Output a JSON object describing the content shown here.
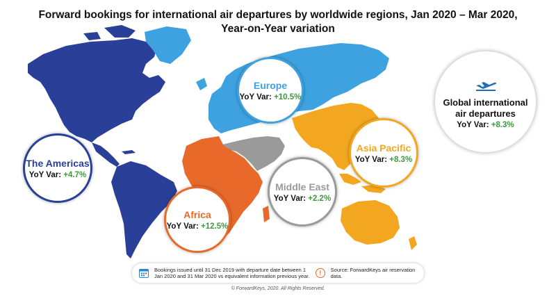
{
  "title_line1": "Forward bookings for international air departures by worldwide regions, Jan 2020 – Mar 2020,",
  "title_line2": "Year-on-Year variation",
  "regions": [
    {
      "name": "The Americas",
      "yoy_label": "YoY Var:",
      "yoy_value": "+4.7%",
      "color": "#2a3f98"
    },
    {
      "name": "Europe",
      "yoy_label": "YoY Var:",
      "yoy_value": "+10.5%",
      "color": "#3ea1e0"
    },
    {
      "name": "Africa",
      "yoy_label": "YoY Var:",
      "yoy_value": "+12.5%",
      "color": "#e8692a"
    },
    {
      "name": "Middle East",
      "yoy_label": "YoY Var:",
      "yoy_value": "+2.2%",
      "color": "#9a9a9a"
    },
    {
      "name": "Asia Pacific",
      "yoy_label": "YoY Var:",
      "yoy_value": "+8.3%",
      "color": "#f3a721"
    }
  ],
  "global": {
    "line1": "Global international",
    "line2": "air departures",
    "yoy_label": "YoY Var:",
    "yoy_value": "+8.3%",
    "icon": "plane-departure-icon"
  },
  "footer": {
    "note": "Bookings issued until 31 Dec 2019 with departure date between 1 Jan 2020 and 31 Mar 2020 vs equivalent information previous year.",
    "source": "Source: ForwardKeys air reservation data.",
    "note_icon": "calendar-icon",
    "source_icon": "info-icon"
  },
  "copyright": "© ForwardKeys, 2020. All Rights Reserved.",
  "legend_color_positive": "#3c9a3c"
}
